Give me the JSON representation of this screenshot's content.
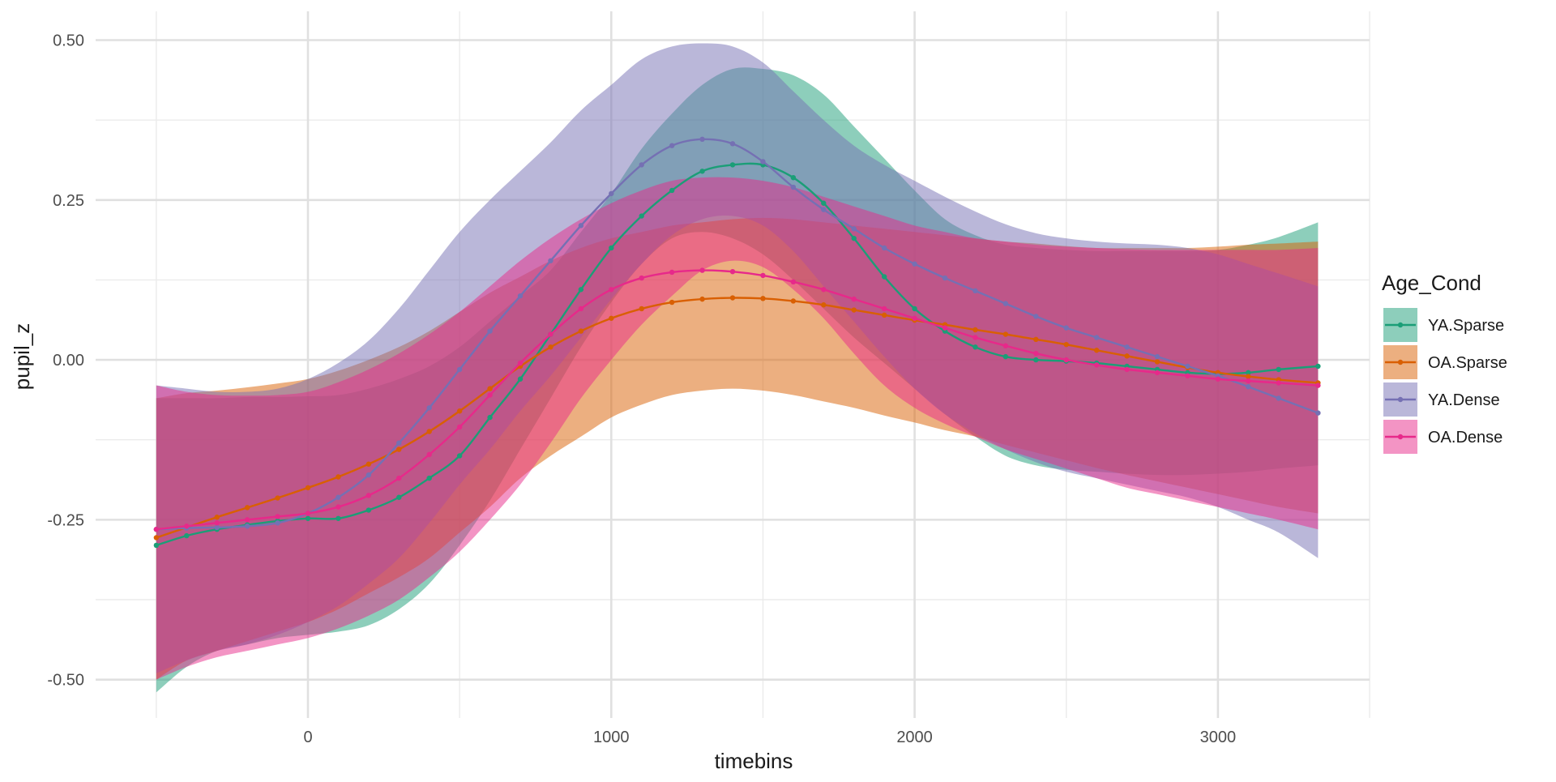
{
  "chart_data": {
    "type": "line",
    "title": "",
    "xlabel": "timebins",
    "ylabel": "pupil_z",
    "xlim": [
      -700,
      3500
    ],
    "ylim": [
      -0.56,
      0.545
    ],
    "x_ticks": [
      0,
      1000,
      2000,
      3000
    ],
    "x_tick_labels": [
      "0",
      "1000",
      "2000",
      "3000"
    ],
    "x_minor_ticks": [
      -500,
      500,
      1500,
      2500,
      3500
    ],
    "y_ticks": [
      -0.5,
      -0.25,
      0,
      0.25,
      0.5
    ],
    "y_tick_labels": [
      "-0.50",
      "-0.25",
      "0.00",
      "0.25",
      "0.50"
    ],
    "y_minor_ticks": [
      -0.375,
      -0.125,
      0.125,
      0.375
    ],
    "grid": true,
    "legend": {
      "title": "Age_Cond",
      "position": "right"
    },
    "x": [
      -500,
      -400,
      -300,
      -200,
      -100,
      0,
      100,
      200,
      300,
      400,
      500,
      600,
      700,
      800,
      900,
      1000,
      1100,
      1200,
      1300,
      1400,
      1500,
      1600,
      1700,
      1800,
      1900,
      2000,
      2100,
      2200,
      2300,
      2400,
      2500,
      2600,
      2700,
      2800,
      2900,
      3000,
      3100,
      3200,
      3330
    ],
    "series": [
      {
        "name": "YA.Sparse",
        "color": "#1b9e77",
        "fill_opacity": 0.5,
        "values": [
          -0.29,
          -0.275,
          -0.265,
          -0.258,
          -0.252,
          -0.248,
          -0.248,
          -0.235,
          -0.215,
          -0.185,
          -0.15,
          -0.09,
          -0.03,
          0.04,
          0.11,
          0.175,
          0.225,
          0.265,
          0.295,
          0.305,
          0.305,
          0.285,
          0.245,
          0.19,
          0.13,
          0.08,
          0.045,
          0.02,
          0.005,
          0.0,
          -0.002,
          -0.005,
          -0.01,
          -0.015,
          -0.02,
          -0.022,
          -0.02,
          -0.015,
          -0.01
        ],
        "lower": [
          -0.52,
          -0.48,
          -0.455,
          -0.445,
          -0.435,
          -0.43,
          -0.425,
          -0.415,
          -0.39,
          -0.35,
          -0.29,
          -0.22,
          -0.14,
          -0.06,
          0.02,
          0.09,
          0.15,
          0.19,
          0.2,
          0.19,
          0.165,
          0.125,
          0.08,
          0.035,
          -0.005,
          -0.045,
          -0.085,
          -0.12,
          -0.15,
          -0.165,
          -0.172,
          -0.175,
          -0.178,
          -0.18,
          -0.18,
          -0.178,
          -0.175,
          -0.17,
          -0.165
        ],
        "upper": [
          -0.06,
          -0.06,
          -0.06,
          -0.058,
          -0.058,
          -0.057,
          -0.055,
          -0.045,
          -0.03,
          -0.01,
          0.02,
          0.06,
          0.1,
          0.14,
          0.2,
          0.26,
          0.33,
          0.385,
          0.43,
          0.455,
          0.455,
          0.445,
          0.415,
          0.365,
          0.315,
          0.265,
          0.22,
          0.195,
          0.18,
          0.175,
          0.172,
          0.17,
          0.17,
          0.17,
          0.17,
          0.172,
          0.18,
          0.192,
          0.215
        ]
      },
      {
        "name": "OA.Sparse",
        "color": "#d95f02",
        "fill_opacity": 0.5,
        "values": [
          -0.278,
          -0.262,
          -0.246,
          -0.231,
          -0.216,
          -0.2,
          -0.183,
          -0.163,
          -0.14,
          -0.112,
          -0.08,
          -0.045,
          -0.01,
          0.02,
          0.045,
          0.065,
          0.08,
          0.09,
          0.095,
          0.097,
          0.096,
          0.092,
          0.086,
          0.078,
          0.07,
          0.062,
          0.055,
          0.047,
          0.04,
          0.032,
          0.024,
          0.015,
          0.006,
          -0.003,
          -0.012,
          -0.02,
          -0.026,
          -0.031,
          -0.036
        ],
        "lower": [
          -0.5,
          -0.47,
          -0.455,
          -0.44,
          -0.425,
          -0.41,
          -0.39,
          -0.365,
          -0.34,
          -0.31,
          -0.27,
          -0.23,
          -0.185,
          -0.15,
          -0.12,
          -0.09,
          -0.07,
          -0.055,
          -0.048,
          -0.045,
          -0.048,
          -0.055,
          -0.065,
          -0.075,
          -0.087,
          -0.098,
          -0.11,
          -0.12,
          -0.133,
          -0.145,
          -0.157,
          -0.169,
          -0.18,
          -0.19,
          -0.2,
          -0.21,
          -0.22,
          -0.23,
          -0.24
        ],
        "upper": [
          -0.06,
          -0.052,
          -0.048,
          -0.043,
          -0.037,
          -0.03,
          -0.017,
          0.0,
          0.02,
          0.045,
          0.075,
          0.105,
          0.13,
          0.155,
          0.175,
          0.19,
          0.2,
          0.21,
          0.215,
          0.22,
          0.222,
          0.22,
          0.215,
          0.21,
          0.205,
          0.2,
          0.195,
          0.19,
          0.185,
          0.182,
          0.178,
          0.175,
          0.175,
          0.175,
          0.175,
          0.177,
          0.18,
          0.182,
          0.185
        ]
      },
      {
        "name": "YA.Dense",
        "color": "#7570b3",
        "fill_opacity": 0.5,
        "values": [
          -0.265,
          -0.263,
          -0.262,
          -0.26,
          -0.255,
          -0.24,
          -0.215,
          -0.18,
          -0.13,
          -0.075,
          -0.015,
          0.045,
          0.1,
          0.155,
          0.21,
          0.26,
          0.305,
          0.335,
          0.345,
          0.338,
          0.31,
          0.27,
          0.235,
          0.205,
          0.175,
          0.15,
          0.128,
          0.108,
          0.088,
          0.068,
          0.05,
          0.035,
          0.02,
          0.005,
          -0.01,
          -0.025,
          -0.042,
          -0.06,
          -0.083
        ],
        "lower": [
          -0.49,
          -0.47,
          -0.455,
          -0.445,
          -0.43,
          -0.41,
          -0.385,
          -0.35,
          -0.31,
          -0.255,
          -0.195,
          -0.14,
          -0.08,
          -0.025,
          0.035,
          0.095,
          0.15,
          0.195,
          0.22,
          0.225,
          0.21,
          0.17,
          0.115,
          0.06,
          0.005,
          -0.045,
          -0.085,
          -0.115,
          -0.14,
          -0.16,
          -0.175,
          -0.185,
          -0.195,
          -0.205,
          -0.215,
          -0.23,
          -0.25,
          -0.27,
          -0.31
        ],
        "upper": [
          -0.04,
          -0.045,
          -0.05,
          -0.05,
          -0.045,
          -0.03,
          -0.005,
          0.03,
          0.08,
          0.14,
          0.2,
          0.25,
          0.295,
          0.34,
          0.39,
          0.43,
          0.47,
          0.49,
          0.495,
          0.49,
          0.465,
          0.42,
          0.375,
          0.335,
          0.305,
          0.28,
          0.255,
          0.232,
          0.212,
          0.198,
          0.19,
          0.185,
          0.182,
          0.18,
          0.175,
          0.165,
          0.15,
          0.135,
          0.115
        ]
      },
      {
        "name": "OA.Dense",
        "color": "#e7298a",
        "fill_opacity": 0.5,
        "values": [
          -0.265,
          -0.26,
          -0.255,
          -0.25,
          -0.245,
          -0.24,
          -0.23,
          -0.212,
          -0.185,
          -0.148,
          -0.105,
          -0.055,
          -0.005,
          0.04,
          0.08,
          0.11,
          0.128,
          0.137,
          0.14,
          0.138,
          0.132,
          0.122,
          0.11,
          0.095,
          0.08,
          0.065,
          0.05,
          0.035,
          0.022,
          0.01,
          0.0,
          -0.008,
          -0.015,
          -0.02,
          -0.025,
          -0.03,
          -0.033,
          -0.036,
          -0.04
        ],
        "lower": [
          -0.5,
          -0.48,
          -0.465,
          -0.455,
          -0.445,
          -0.435,
          -0.42,
          -0.4,
          -0.375,
          -0.34,
          -0.3,
          -0.25,
          -0.195,
          -0.13,
          -0.06,
          0.0,
          0.055,
          0.1,
          0.14,
          0.155,
          0.145,
          0.11,
          0.065,
          0.01,
          -0.04,
          -0.075,
          -0.1,
          -0.12,
          -0.14,
          -0.155,
          -0.17,
          -0.185,
          -0.2,
          -0.21,
          -0.22,
          -0.23,
          -0.24,
          -0.25,
          -0.265
        ],
        "upper": [
          -0.04,
          -0.05,
          -0.055,
          -0.056,
          -0.055,
          -0.05,
          -0.035,
          -0.015,
          0.01,
          0.04,
          0.075,
          0.115,
          0.155,
          0.19,
          0.22,
          0.245,
          0.265,
          0.28,
          0.285,
          0.285,
          0.28,
          0.27,
          0.255,
          0.24,
          0.225,
          0.21,
          0.2,
          0.19,
          0.185,
          0.18,
          0.177,
          0.175,
          0.173,
          0.172,
          0.172,
          0.172,
          0.172,
          0.172,
          0.175
        ]
      }
    ]
  }
}
